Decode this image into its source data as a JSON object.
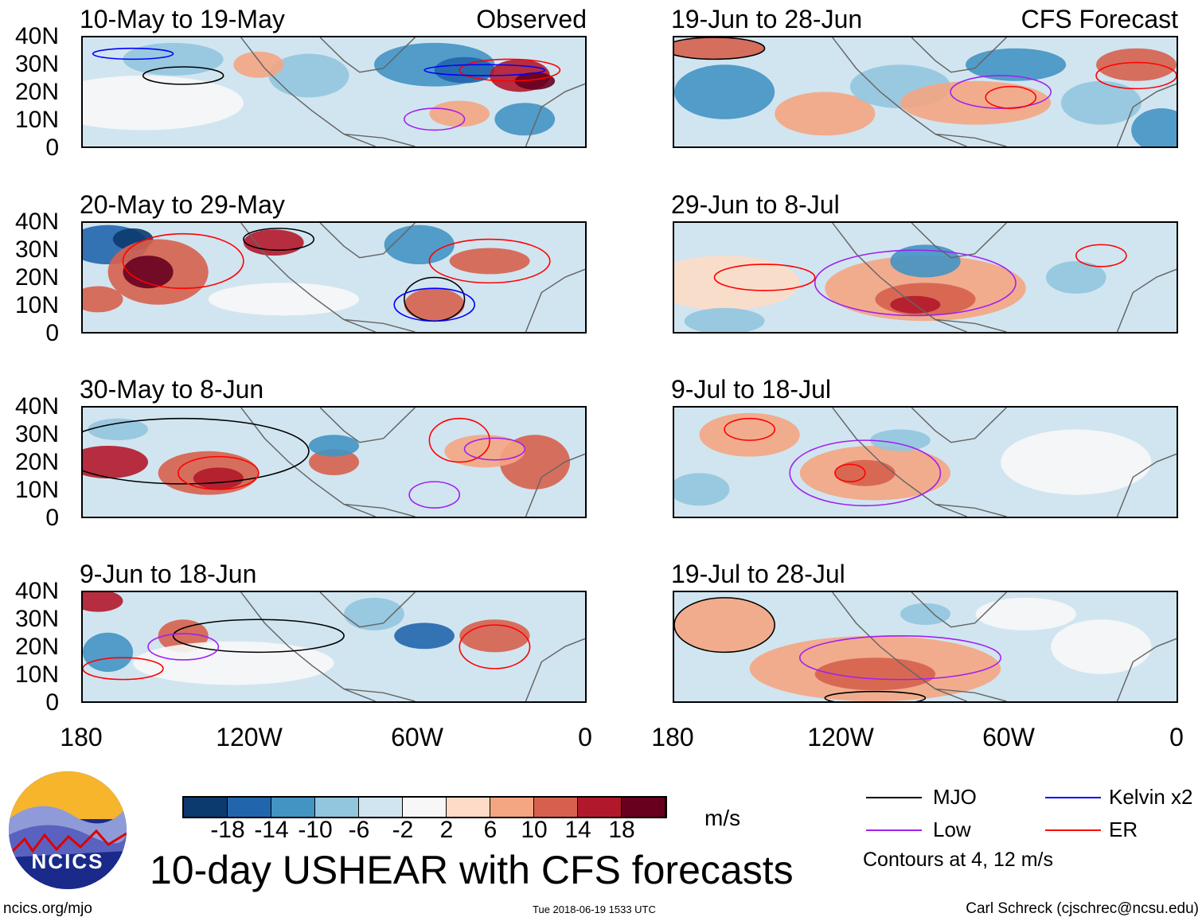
{
  "panels": [
    {
      "title": "10-May to 19-May",
      "tag": "Observed"
    },
    {
      "title": "20-May to 29-May"
    },
    {
      "title": "30-May to 8-Jun"
    },
    {
      "title": "9-Jun to 18-Jun"
    },
    {
      "title": "19-Jun to 28-Jun",
      "tag": "CFS Forecast"
    },
    {
      "title": "29-Jun to 8-Jul"
    },
    {
      "title": "9-Jul to 18-Jul"
    },
    {
      "title": "19-Jul to 28-Jul"
    }
  ],
  "lat_labels": [
    "40N",
    "30N",
    "20N",
    "10N",
    "0"
  ],
  "lon_labels": [
    "180",
    "120W",
    "60W",
    "0"
  ],
  "colorbar": {
    "colors": [
      "#0b3a6e",
      "#2166ac",
      "#4393c3",
      "#92c5de",
      "#d1e5f0",
      "#f7f7f7",
      "#fddbc7",
      "#f4a582",
      "#d6604d",
      "#b2182b",
      "#67001f"
    ],
    "labels": [
      "-18",
      "-14",
      "-10",
      "-6",
      "-2",
      "2",
      "6",
      "10",
      "14",
      "18"
    ],
    "units": "m/s"
  },
  "legend": {
    "items": [
      {
        "label": "MJO",
        "color": "#000000"
      },
      {
        "label": "Kelvin x2",
        "color": "#0000ff"
      },
      {
        "label": "Low",
        "color": "#a020f0"
      },
      {
        "label": "ER",
        "color": "#ff0000"
      }
    ],
    "note": "Contours at 4, 12 m/s"
  },
  "title": "10-day USHEAR with CFS forecasts",
  "logo_text": "NCICS",
  "footer": {
    "left": "ncics.org/mjo",
    "center": "Tue 2018-06-19 1533 UTC",
    "right": "Carl Schreck (cjschrec@ncsu.edu)"
  }
}
